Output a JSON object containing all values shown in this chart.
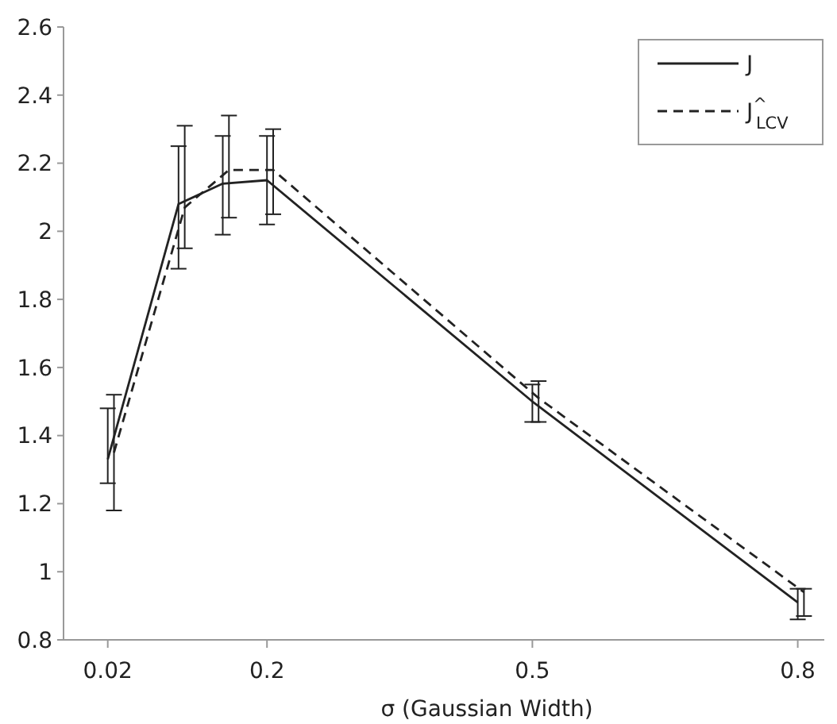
{
  "chart_data": {
    "type": "line",
    "xlabel": "σ (Gaussian Width)",
    "xlim": [
      -0.03,
      0.83
    ],
    "xticks": [
      0.02,
      0.2,
      0.5,
      0.8
    ],
    "ylim": [
      0.8,
      2.6
    ],
    "yticks": [
      0.8,
      1,
      1.2,
      1.4,
      1.6,
      1.8,
      2,
      2.2,
      2.4,
      2.6
    ],
    "grid": false,
    "legend": "top right",
    "marker": "none",
    "series": [
      {
        "name": "J",
        "color": "#222222",
        "line_style": "solid",
        "x": [
          0.02,
          0.1,
          0.15,
          0.2,
          0.5,
          0.8
        ],
        "values": [
          1.33,
          2.08,
          2.14,
          2.15,
          1.5,
          0.91
        ],
        "errors": [
          [
            1.26,
            1.48
          ],
          [
            1.89,
            2.25
          ],
          [
            1.99,
            2.28
          ],
          [
            2.02,
            2.28
          ],
          [
            1.44,
            1.55
          ],
          [
            0.86,
            0.95
          ]
        ]
      },
      {
        "name": "J$^{^}$$_{LCV}$",
        "color": "#222222",
        "line_style": "dashed",
        "x": [
          0.027,
          0.107,
          0.157,
          0.207,
          0.507,
          0.807
        ],
        "values": [
          1.35,
          2.07,
          2.18,
          2.18,
          1.51,
          0.94
        ],
        "errors": [
          [
            1.18,
            1.52
          ],
          [
            1.95,
            2.31
          ],
          [
            2.04,
            2.34
          ],
          [
            2.05,
            2.3
          ],
          [
            1.44,
            1.56
          ],
          [
            0.87,
            0.95
          ]
        ]
      }
    ]
  }
}
